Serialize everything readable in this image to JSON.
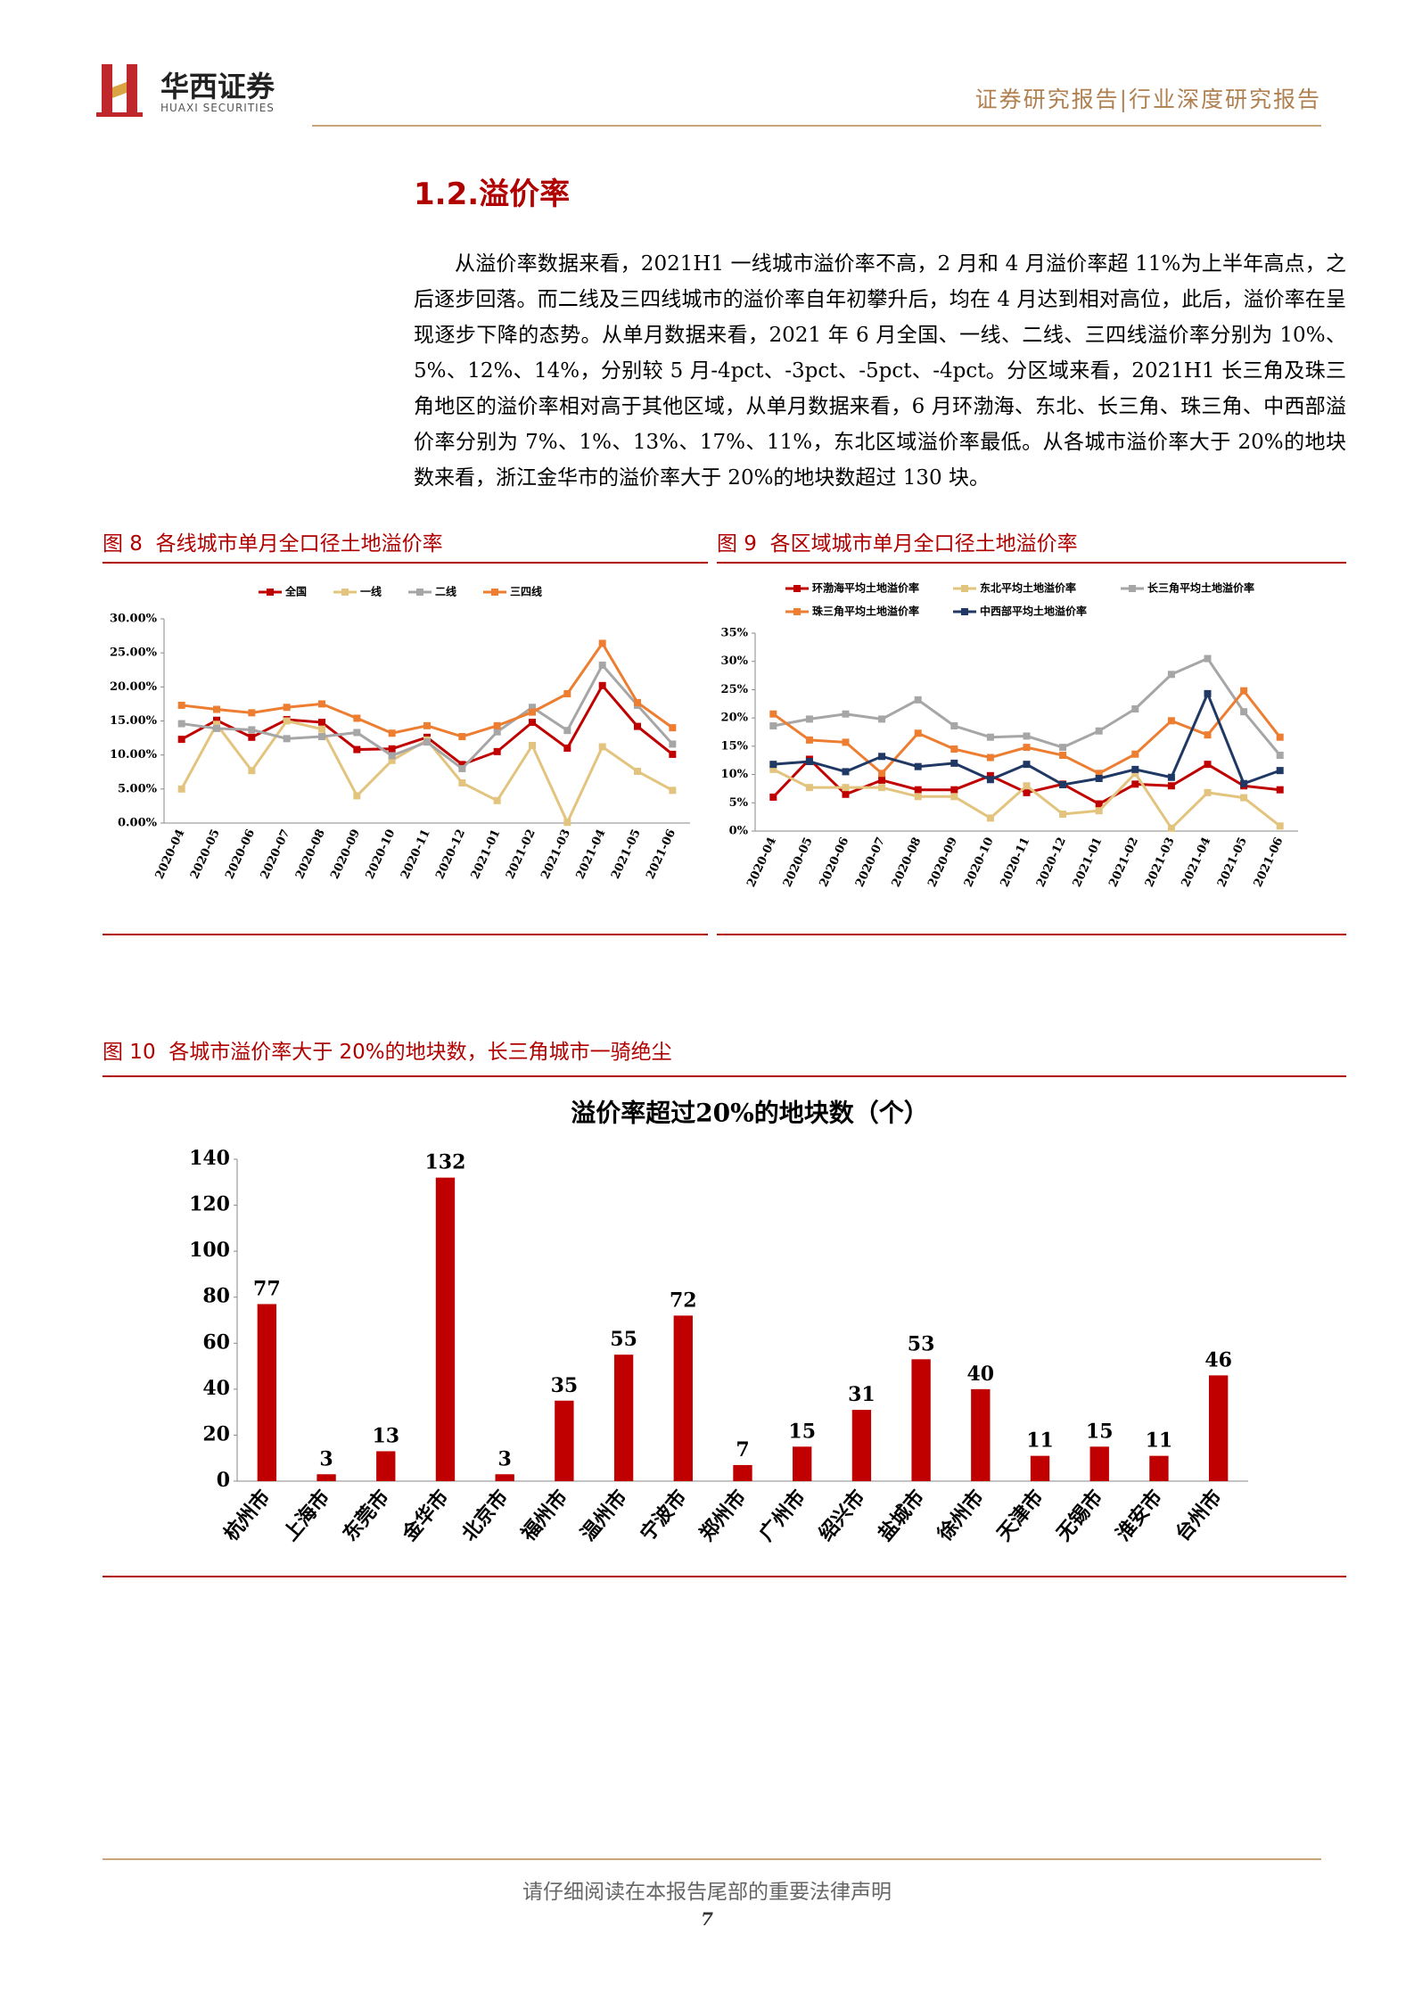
{
  "header": {
    "logo_cn": "华西证券",
    "logo_en": "HUAXI SECURITIES",
    "report_type": "证券研究报告|行业深度研究报告"
  },
  "section": {
    "title": "1.2.溢价率",
    "paragraph": "从溢价率数据来看，2021H1 一线城市溢价率不高，2 月和 4 月溢价率超 11%为上半年高点，之后逐步回落。而二线及三四线城市的溢价率自年初攀升后，均在 4 月达到相对高位，此后，溢价率在呈现逐步下降的态势。从单月数据来看，2021 年 6 月全国、一线、二线、三四线溢价率分别为 10%、5%、12%、14%，分别较 5 月-4pct、-3pct、-5pct、-4pct。分区域来看，2021H1 长三角及珠三角地区的溢价率相对高于其他区域，从单月数据来看，6 月环渤海、东北、长三角、珠三角、中西部溢价率分别为 7%、1%、13%、17%、11%，东北区域溢价率最低。从各城市溢价率大于 20%的地块数来看，浙江金华市的溢价率大于 20%的地块数超过 130 块。"
  },
  "chart_data": [
    {
      "type": "line",
      "caption": "图 8  各线城市单月全口径土地溢价率",
      "categories": [
        "2020-04",
        "2020-05",
        "2020-06",
        "2020-07",
        "2020-08",
        "2020-09",
        "2020-10",
        "2020-11",
        "2020-12",
        "2021-01",
        "2021-02",
        "2021-03",
        "2021-04",
        "2021-05",
        "2021-06"
      ],
      "series": [
        {
          "name": "全国",
          "color": "#c00000",
          "values": [
            12.3,
            15.1,
            12.6,
            15.2,
            14.8,
            10.8,
            10.9,
            12.6,
            8.6,
            10.5,
            14.8,
            11.0,
            20.2,
            14.2,
            10.1
          ]
        },
        {
          "name": "一线",
          "color": "#e3c47e",
          "values": [
            5.0,
            14.5,
            7.7,
            15.0,
            13.8,
            4.0,
            9.2,
            12.2,
            5.9,
            3.3,
            11.4,
            0.1,
            11.2,
            7.6,
            4.8
          ]
        },
        {
          "name": "二线",
          "color": "#a6a6a6",
          "values": [
            14.6,
            13.9,
            13.7,
            12.4,
            12.7,
            13.3,
            9.9,
            11.9,
            8.0,
            13.4,
            17.0,
            13.6,
            23.2,
            17.3,
            11.6
          ]
        },
        {
          "name": "三四线",
          "color": "#ed7d31",
          "values": [
            17.3,
            16.7,
            16.2,
            17.0,
            17.5,
            15.4,
            13.2,
            14.3,
            12.7,
            14.3,
            16.3,
            19.0,
            26.4,
            17.7,
            14.0
          ]
        }
      ],
      "ylim": [
        0,
        30
      ],
      "yticks": [
        {
          "value": 0,
          "label": "0.00%"
        },
        {
          "value": 5,
          "label": "5.00%"
        },
        {
          "value": 10,
          "label": "10.00%"
        },
        {
          "value": 15,
          "label": "15.00%"
        },
        {
          "value": 20,
          "label": "20.00%"
        },
        {
          "value": 25,
          "label": "25.00%"
        },
        {
          "value": 30,
          "label": "30.00%"
        }
      ],
      "grid": false,
      "legend": "top"
    },
    {
      "type": "line",
      "caption": "图 9  各区域城市单月全口径土地溢价率",
      "categories": [
        "2020-04",
        "2020-05",
        "2020-06",
        "2020-07",
        "2020-08",
        "2020-09",
        "2020-10",
        "2020-11",
        "2020-12",
        "2021-01",
        "2021-02",
        "2021-03",
        "2021-04",
        "2021-05",
        "2021-06"
      ],
      "series": [
        {
          "name": "环渤海平均土地溢价率",
          "color": "#c00000",
          "values": [
            6.0,
            12.7,
            6.5,
            9.0,
            7.3,
            7.3,
            9.8,
            6.8,
            8.3,
            4.8,
            8.3,
            8.0,
            11.8,
            8.0,
            7.3
          ]
        },
        {
          "name": "东北平均土地溢价率",
          "color": "#e3c47e",
          "values": [
            10.9,
            7.7,
            7.7,
            7.7,
            6.1,
            6.1,
            2.3,
            8.0,
            3.0,
            3.6,
            10.2,
            0.5,
            6.8,
            5.9,
            0.9
          ]
        },
        {
          "name": "长三角平均土地溢价率",
          "color": "#a6a6a6",
          "values": [
            18.6,
            19.8,
            20.7,
            19.8,
            23.2,
            18.6,
            16.6,
            16.8,
            14.8,
            17.7,
            21.6,
            27.7,
            30.5,
            21.1,
            13.4
          ]
        },
        {
          "name": "珠三角平均土地溢价率",
          "color": "#ed7d31",
          "values": [
            20.7,
            16.1,
            15.7,
            10.2,
            17.3,
            14.5,
            13.0,
            14.8,
            13.4,
            10.2,
            13.6,
            19.5,
            17.0,
            24.8,
            16.6
          ]
        },
        {
          "name": "中西部平均土地溢价率",
          "color": "#1f3864",
          "values": [
            11.8,
            12.3,
            10.5,
            13.2,
            11.4,
            12.0,
            9.1,
            11.8,
            8.2,
            9.3,
            10.9,
            9.5,
            24.3,
            8.4,
            10.7
          ]
        }
      ],
      "ylim": [
        0,
        35
      ],
      "yticks": [
        {
          "value": 0,
          "label": "0%"
        },
        {
          "value": 5,
          "label": "5%"
        },
        {
          "value": 10,
          "label": "10%"
        },
        {
          "value": 15,
          "label": "15%"
        },
        {
          "value": 20,
          "label": "20%"
        },
        {
          "value": 25,
          "label": "25%"
        },
        {
          "value": 30,
          "label": "30%"
        },
        {
          "value": 35,
          "label": "35%"
        }
      ],
      "grid": false,
      "legend": "top"
    },
    {
      "type": "bar",
      "caption": "图 10  各城市溢价率大于 20%的地块数，长三角城市一骑绝尘",
      "title": "溢价率超过20%的地块数（个）",
      "categories": [
        "杭州市",
        "上海市",
        "东莞市",
        "金华市",
        "北京市",
        "福州市",
        "温州市",
        "宁波市",
        "郑州市",
        "广州市",
        "绍兴市",
        "盐城市",
        "徐州市",
        "天津市",
        "无锡市",
        "淮安市",
        "台州市"
      ],
      "values": [
        77,
        3,
        13,
        132,
        3,
        35,
        55,
        72,
        7,
        15,
        31,
        53,
        40,
        11,
        15,
        11,
        46
      ],
      "color": "#c00000",
      "ylim": [
        0,
        140
      ],
      "yticks": [
        0,
        20,
        40,
        60,
        80,
        100,
        120,
        140
      ],
      "grid": false
    }
  ],
  "footer": {
    "disclaimer": "请仔细阅读在本报告尾部的重要法律声明",
    "page": 7
  }
}
